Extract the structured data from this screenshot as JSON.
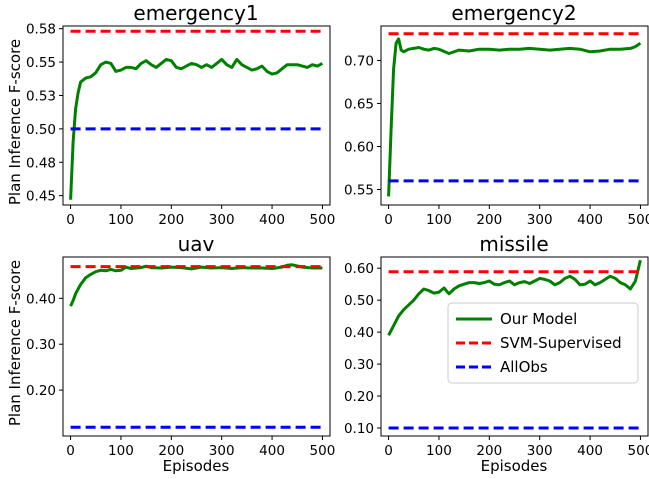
{
  "figure": {
    "shared_ylabel": "Plan Inference F-score",
    "shared_xlabel": "Episodes"
  },
  "legend": {
    "placement": "lower-right of missile panel",
    "entries": [
      {
        "label": "Our Model",
        "color": "#008000",
        "style": "solid"
      },
      {
        "label": "SVM-Supervised",
        "color": "#ff0000",
        "style": "dashed"
      },
      {
        "label": "AllObs",
        "color": "#0000ff",
        "style": "dashed"
      }
    ]
  },
  "chart_data": [
    {
      "type": "line",
      "title": "emergency1",
      "xlabel": "",
      "ylabel": "Plan Inference F-score",
      "xlim": [
        -15,
        515
      ],
      "ylim": [
        0.443,
        0.577
      ],
      "xticks": [
        0,
        100,
        200,
        300,
        400,
        500
      ],
      "yticks": [
        0.45,
        0.475,
        0.5,
        0.525,
        0.55,
        0.575
      ],
      "ytick_labels": [
        "0.45",
        "0.48",
        "0.50",
        "0.53",
        "0.55",
        "0.58"
      ],
      "series": [
        {
          "name": "Our Model",
          "color": "#008000",
          "style": "solid",
          "x": [
            0,
            5,
            10,
            15,
            20,
            30,
            40,
            50,
            60,
            70,
            80,
            90,
            100,
            110,
            120,
            130,
            140,
            150,
            160,
            170,
            180,
            190,
            200,
            210,
            220,
            230,
            240,
            250,
            260,
            270,
            280,
            290,
            300,
            310,
            320,
            330,
            340,
            350,
            360,
            370,
            380,
            390,
            400,
            410,
            420,
            430,
            440,
            450,
            460,
            470,
            480,
            490,
            500
          ],
          "y": [
            0.447,
            0.49,
            0.515,
            0.527,
            0.535,
            0.538,
            0.539,
            0.542,
            0.548,
            0.55,
            0.549,
            0.543,
            0.544,
            0.546,
            0.546,
            0.545,
            0.549,
            0.551,
            0.548,
            0.546,
            0.549,
            0.552,
            0.551,
            0.546,
            0.545,
            0.547,
            0.549,
            0.548,
            0.546,
            0.548,
            0.546,
            0.549,
            0.552,
            0.548,
            0.546,
            0.552,
            0.548,
            0.546,
            0.544,
            0.545,
            0.547,
            0.543,
            0.541,
            0.542,
            0.545,
            0.548,
            0.548,
            0.548,
            0.547,
            0.546,
            0.548,
            0.547,
            0.549
          ]
        },
        {
          "name": "SVM-Supervised",
          "color": "#ff0000",
          "style": "dashed",
          "x": [
            0,
            500
          ],
          "y": [
            0.573,
            0.573
          ]
        },
        {
          "name": "AllObs",
          "color": "#0000ff",
          "style": "dashed",
          "x": [
            0,
            500
          ],
          "y": [
            0.5,
            0.5
          ]
        }
      ]
    },
    {
      "type": "line",
      "title": "emergency2",
      "xlabel": "",
      "ylabel": "",
      "xlim": [
        -15,
        515
      ],
      "ylim": [
        0.532,
        0.74
      ],
      "xticks": [
        0,
        100,
        200,
        300,
        400,
        500
      ],
      "yticks": [
        0.55,
        0.6,
        0.65,
        0.7
      ],
      "ytick_labels": [
        "0.55",
        "0.60",
        "0.65",
        "0.70"
      ],
      "series": [
        {
          "name": "Our Model",
          "color": "#008000",
          "style": "solid",
          "x": [
            0,
            5,
            10,
            15,
            20,
            25,
            30,
            40,
            50,
            60,
            70,
            80,
            90,
            100,
            120,
            140,
            160,
            180,
            200,
            220,
            240,
            260,
            280,
            300,
            320,
            340,
            360,
            380,
            400,
            420,
            440,
            460,
            480,
            490,
            500
          ],
          "y": [
            0.542,
            0.62,
            0.69,
            0.72,
            0.725,
            0.712,
            0.71,
            0.713,
            0.714,
            0.715,
            0.713,
            0.712,
            0.714,
            0.713,
            0.708,
            0.712,
            0.711,
            0.713,
            0.713,
            0.712,
            0.713,
            0.713,
            0.714,
            0.713,
            0.712,
            0.713,
            0.714,
            0.713,
            0.71,
            0.711,
            0.713,
            0.713,
            0.714,
            0.716,
            0.72
          ]
        },
        {
          "name": "SVM-Supervised",
          "color": "#ff0000",
          "style": "dashed",
          "x": [
            0,
            500
          ],
          "y": [
            0.731,
            0.731
          ]
        },
        {
          "name": "AllObs",
          "color": "#0000ff",
          "style": "dashed",
          "x": [
            0,
            500
          ],
          "y": [
            0.56,
            0.56
          ]
        }
      ]
    },
    {
      "type": "line",
      "title": "uav",
      "xlabel": "Episodes",
      "ylabel": "Plan Inference F-score",
      "xlim": [
        -15,
        515
      ],
      "ylim": [
        0.1,
        0.49
      ],
      "xticks": [
        0,
        100,
        200,
        300,
        400,
        500
      ],
      "yticks": [
        0.2,
        0.3,
        0.4
      ],
      "ytick_labels": [
        "0.20",
        "0.30",
        "0.40"
      ],
      "series": [
        {
          "name": "Our Model",
          "color": "#008000",
          "style": "solid",
          "x": [
            0,
            5,
            10,
            20,
            30,
            40,
            50,
            60,
            70,
            80,
            90,
            100,
            110,
            120,
            130,
            140,
            150,
            160,
            180,
            200,
            220,
            240,
            260,
            280,
            300,
            320,
            340,
            360,
            380,
            400,
            420,
            430,
            440,
            460,
            480,
            500
          ],
          "y": [
            0.383,
            0.395,
            0.41,
            0.43,
            0.445,
            0.452,
            0.458,
            0.461,
            0.46,
            0.463,
            0.46,
            0.461,
            0.468,
            0.465,
            0.466,
            0.467,
            0.47,
            0.467,
            0.466,
            0.468,
            0.467,
            0.464,
            0.468,
            0.466,
            0.467,
            0.465,
            0.467,
            0.466,
            0.466,
            0.465,
            0.468,
            0.472,
            0.473,
            0.468,
            0.466,
            0.466
          ]
        },
        {
          "name": "SVM-Supervised",
          "color": "#ff0000",
          "style": "dashed",
          "x": [
            0,
            500
          ],
          "y": [
            0.469,
            0.469
          ]
        },
        {
          "name": "AllObs",
          "color": "#0000ff",
          "style": "dashed",
          "x": [
            0,
            500
          ],
          "y": [
            0.119,
            0.119
          ]
        }
      ]
    },
    {
      "type": "line",
      "title": "missile",
      "xlabel": "Episodes",
      "ylabel": "",
      "xlim": [
        -15,
        515
      ],
      "ylim": [
        0.075,
        0.635
      ],
      "xticks": [
        0,
        100,
        200,
        300,
        400,
        500
      ],
      "yticks": [
        0.1,
        0.2,
        0.3,
        0.4,
        0.5,
        0.6
      ],
      "ytick_labels": [
        "0.10",
        "0.20",
        "0.30",
        "0.40",
        "0.50",
        "0.60"
      ],
      "series": [
        {
          "name": "Our Model",
          "color": "#008000",
          "style": "solid",
          "x": [
            0,
            10,
            20,
            30,
            40,
            50,
            60,
            70,
            80,
            90,
            100,
            110,
            120,
            130,
            140,
            150,
            160,
            170,
            180,
            190,
            200,
            210,
            220,
            230,
            240,
            250,
            260,
            270,
            280,
            290,
            300,
            310,
            320,
            330,
            340,
            350,
            360,
            370,
            380,
            390,
            400,
            410,
            420,
            430,
            440,
            450,
            460,
            470,
            480,
            490,
            500
          ],
          "y": [
            0.39,
            0.42,
            0.45,
            0.47,
            0.485,
            0.5,
            0.52,
            0.535,
            0.53,
            0.522,
            0.525,
            0.538,
            0.52,
            0.535,
            0.545,
            0.55,
            0.555,
            0.555,
            0.552,
            0.555,
            0.56,
            0.55,
            0.548,
            0.555,
            0.56,
            0.548,
            0.555,
            0.558,
            0.552,
            0.56,
            0.568,
            0.565,
            0.56,
            0.548,
            0.555,
            0.568,
            0.575,
            0.565,
            0.548,
            0.55,
            0.56,
            0.548,
            0.555,
            0.565,
            0.575,
            0.568,
            0.555,
            0.548,
            0.535,
            0.56,
            0.625
          ]
        },
        {
          "name": "SVM-Supervised",
          "color": "#ff0000",
          "style": "dashed",
          "x": [
            0,
            500
          ],
          "y": [
            0.589,
            0.589
          ]
        },
        {
          "name": "AllObs",
          "color": "#0000ff",
          "style": "dashed",
          "x": [
            0,
            500
          ],
          "y": [
            0.1,
            0.1
          ]
        }
      ]
    }
  ]
}
